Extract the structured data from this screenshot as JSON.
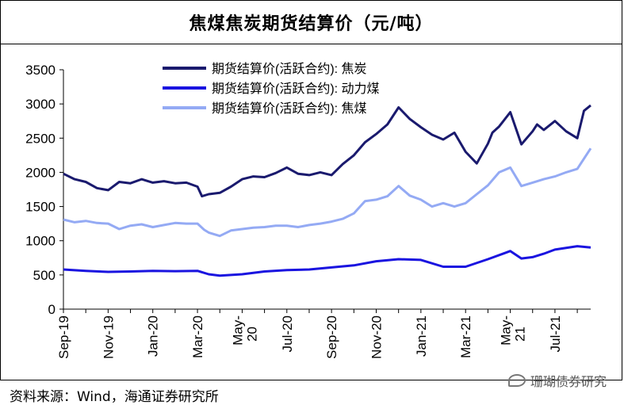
{
  "chart_data": {
    "type": "line",
    "title": "焦煤焦炭期货结算价（元/吨）",
    "ylim": [
      0,
      3500
    ],
    "yticks": [
      0,
      500,
      1000,
      1500,
      2000,
      2500,
      3000,
      3500
    ],
    "x_tick_labels": [
      "Sep-19",
      "Nov-19",
      "Jan-20",
      "Mar-20",
      "May-20",
      "Jul-20",
      "Sep-20",
      "Nov-20",
      "Jan-21",
      "Mar-21",
      "May-21",
      "Jul-21"
    ],
    "x_range_months": [
      0,
      23.6
    ],
    "legend_position": "top-center",
    "series": [
      {
        "name": "期货结算价(活跃合约): 焦炭",
        "color": "#1a1a6e",
        "t": [
          0,
          0.5,
          1,
          1.5,
          2,
          2.5,
          3,
          3.5,
          4,
          4.5,
          5,
          5.5,
          6,
          6.2,
          6.5,
          7,
          7.5,
          8,
          8.5,
          9,
          9.5,
          10,
          10.5,
          11,
          11.5,
          12,
          12.5,
          13,
          13.5,
          14,
          14.5,
          15,
          15.5,
          16,
          16.5,
          17,
          17.5,
          18,
          18.5,
          19,
          19.2,
          19.5,
          20,
          20.5,
          21,
          21.2,
          21.5,
          22,
          22.5,
          23,
          23.3,
          23.6
        ],
        "values": [
          1980,
          1900,
          1860,
          1770,
          1740,
          1860,
          1840,
          1900,
          1850,
          1870,
          1840,
          1850,
          1790,
          1650,
          1680,
          1700,
          1790,
          1900,
          1940,
          1930,
          1990,
          2070,
          1980,
          1960,
          2000,
          1960,
          2120,
          2250,
          2440,
          2560,
          2700,
          2950,
          2780,
          2660,
          2550,
          2480,
          2580,
          2300,
          2130,
          2420,
          2580,
          2670,
          2880,
          2410,
          2600,
          2700,
          2620,
          2750,
          2600,
          2500,
          2900,
          2980
        ]
      },
      {
        "name": "期货结算价(活跃合约): 动力煤",
        "color": "#1a14e0",
        "t": [
          0,
          1,
          2,
          3,
          4,
          5,
          6,
          6.5,
          7,
          8,
          9,
          10,
          11,
          12,
          13,
          14,
          15,
          16,
          17,
          18,
          19,
          20,
          20.5,
          21,
          21.5,
          22,
          23,
          23.6
        ],
        "values": [
          580,
          560,
          545,
          550,
          560,
          555,
          560,
          510,
          490,
          510,
          550,
          570,
          580,
          610,
          640,
          700,
          730,
          720,
          620,
          620,
          730,
          850,
          740,
          760,
          810,
          870,
          920,
          900
        ]
      },
      {
        "name": "期货结算价(活跃合约): 焦煤",
        "color": "#94aaf4",
        "t": [
          0,
          0.5,
          1,
          1.5,
          2,
          2.5,
          3,
          3.5,
          4,
          4.5,
          5,
          5.5,
          6,
          6.3,
          6.5,
          7,
          7.5,
          8,
          8.5,
          9,
          9.5,
          10,
          10.5,
          11,
          11.5,
          12,
          12.5,
          13,
          13.5,
          14,
          14.5,
          15,
          15.5,
          16,
          16.5,
          17,
          17.5,
          18,
          18.5,
          19,
          19.5,
          20,
          20.5,
          21,
          21.5,
          22,
          22.5,
          23,
          23.3,
          23.6
        ],
        "values": [
          1310,
          1270,
          1290,
          1260,
          1250,
          1170,
          1220,
          1240,
          1200,
          1230,
          1260,
          1250,
          1250,
          1160,
          1120,
          1070,
          1150,
          1170,
          1190,
          1200,
          1220,
          1220,
          1200,
          1230,
          1250,
          1280,
          1320,
          1400,
          1580,
          1600,
          1650,
          1800,
          1660,
          1600,
          1500,
          1550,
          1500,
          1550,
          1680,
          1810,
          2000,
          2070,
          1800,
          1850,
          1900,
          1940,
          2000,
          2050,
          2200,
          2350
        ]
      }
    ]
  },
  "source": "资料来源：Wind，海通证券研究所",
  "watermark": "珊瑚债券研究"
}
